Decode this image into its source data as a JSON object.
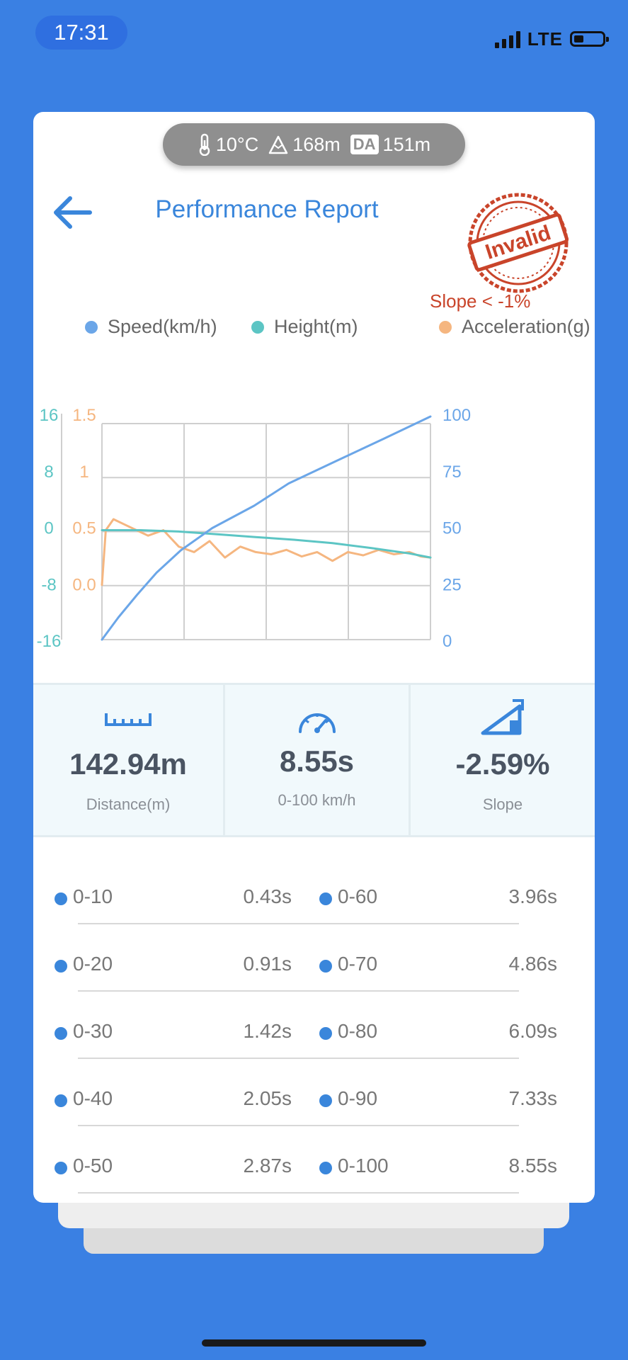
{
  "status_bar": {
    "time": "17:31",
    "network": "LTE",
    "battery_level": 0.35
  },
  "environment": {
    "temperature": "10°C",
    "altitude": "168m",
    "da_label": "DA",
    "density_altitude": "151m"
  },
  "header": {
    "title": "Performance Report",
    "stamp_text": "Invalid",
    "slope_warning": "Slope < -1%"
  },
  "legend": [
    {
      "label": "Speed(km/h)",
      "color": "#6ba6e8"
    },
    {
      "label": "Height(m)",
      "color": "#5cc5c4"
    },
    {
      "label": "Acceleration(g)",
      "color": "#f5b680"
    }
  ],
  "chart_data": {
    "type": "line",
    "axes": {
      "height_ticks": [
        "16",
        "8",
        "0",
        "-8",
        "-16"
      ],
      "accel_ticks": [
        "1.5",
        "1",
        "0.5",
        "0.0"
      ],
      "speed_ticks": [
        "100",
        "75",
        "50",
        "25",
        "0"
      ],
      "height_range": [
        -16,
        16
      ],
      "accel_range": [
        -0.5,
        1.5
      ],
      "speed_range": [
        0,
        100
      ]
    },
    "grid": true,
    "series": [
      {
        "name": "Speed(km/h)",
        "color": "#6ba6e8",
        "x": [
          0,
          0.43,
          0.91,
          1.42,
          2.05,
          2.87,
          3.96,
          4.86,
          6.09,
          7.33,
          8.55
        ],
        "values": [
          0,
          10,
          20,
          30,
          40,
          50,
          60,
          70,
          80,
          90,
          100
        ]
      },
      {
        "name": "Height(m)",
        "color": "#5cc5c4",
        "x": [
          0,
          1,
          2,
          3,
          4,
          5,
          6,
          7,
          8,
          8.55
        ],
        "values": [
          0,
          0,
          -0.2,
          -0.6,
          -1.0,
          -1.4,
          -1.9,
          -2.6,
          -3.4,
          -4.0
        ]
      },
      {
        "name": "Acceleration(g)",
        "color": "#f5b680",
        "x": [
          0,
          0.1,
          0.3,
          0.6,
          0.9,
          1.2,
          1.6,
          2.0,
          2.4,
          2.8,
          3.2,
          3.6,
          4.0,
          4.4,
          4.8,
          5.2,
          5.6,
          6.0,
          6.4,
          6.8,
          7.2,
          7.6,
          8.0,
          8.3,
          8.55
        ],
        "values": [
          0.0,
          0.5,
          0.6,
          0.55,
          0.5,
          0.45,
          0.5,
          0.35,
          0.3,
          0.4,
          0.25,
          0.35,
          0.3,
          0.28,
          0.32,
          0.26,
          0.3,
          0.22,
          0.3,
          0.27,
          0.32,
          0.28,
          0.3,
          0.26,
          0.25
        ]
      }
    ]
  },
  "metrics": [
    {
      "icon": "ruler-icon",
      "value": "142.94m",
      "label": "Distance(m)"
    },
    {
      "icon": "speedometer-icon",
      "value": "8.55s",
      "label": "0-100 km/h"
    },
    {
      "icon": "slope-icon",
      "value": "-2.59%",
      "label": "Slope"
    }
  ],
  "splits": [
    {
      "left": {
        "range": "0-10",
        "time": "0.43s"
      },
      "right": {
        "range": "0-60",
        "time": "3.96s"
      }
    },
    {
      "left": {
        "range": "0-20",
        "time": "0.91s"
      },
      "right": {
        "range": "0-70",
        "time": "4.86s"
      }
    },
    {
      "left": {
        "range": "0-30",
        "time": "1.42s"
      },
      "right": {
        "range": "0-80",
        "time": "6.09s"
      }
    },
    {
      "left": {
        "range": "0-40",
        "time": "2.05s"
      },
      "right": {
        "range": "0-90",
        "time": "7.33s"
      }
    },
    {
      "left": {
        "range": "0-50",
        "time": "2.87s"
      },
      "right": {
        "range": "0-100",
        "time": "8.55s"
      }
    }
  ]
}
